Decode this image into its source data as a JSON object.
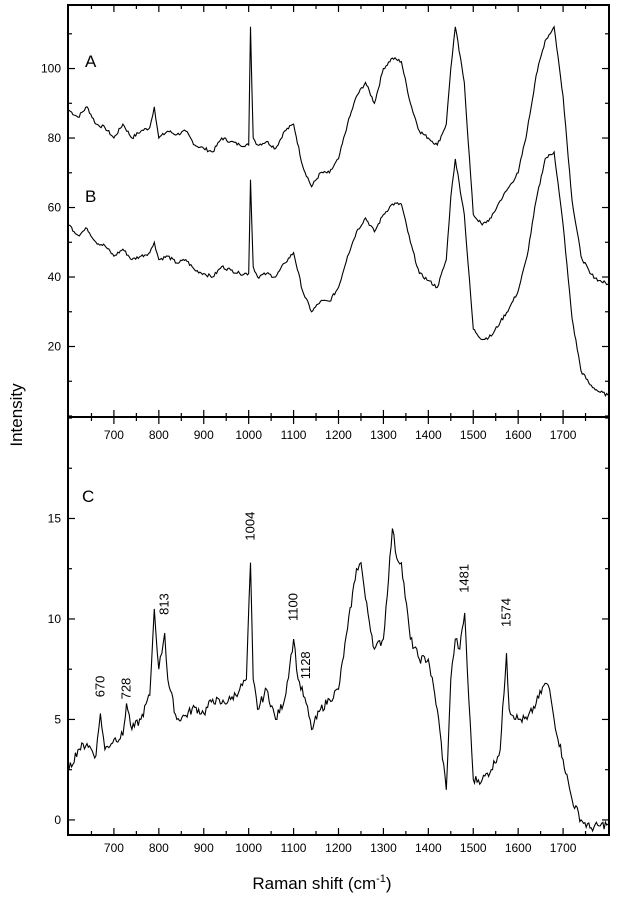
{
  "chart_data": [
    {
      "type": "line",
      "panel": "top",
      "ylabel": "Intensity",
      "xlim": [
        600,
        1800
      ],
      "ylim": [
        0,
        118
      ],
      "xticks": [
        700,
        800,
        900,
        1000,
        1100,
        1200,
        1300,
        1400,
        1500,
        1600,
        1700
      ],
      "yticks": [
        20,
        40,
        60,
        80,
        100
      ],
      "series": [
        {
          "name": "A",
          "x": [
            600,
            620,
            640,
            660,
            680,
            700,
            720,
            740,
            760,
            780,
            790,
            800,
            820,
            840,
            860,
            880,
            900,
            920,
            940,
            960,
            980,
            1000,
            1004,
            1010,
            1020,
            1040,
            1060,
            1080,
            1100,
            1120,
            1140,
            1160,
            1180,
            1200,
            1220,
            1240,
            1260,
            1280,
            1300,
            1320,
            1340,
            1360,
            1380,
            1400,
            1420,
            1440,
            1450,
            1460,
            1480,
            1500,
            1520,
            1540,
            1560,
            1580,
            1600,
            1620,
            1640,
            1660,
            1680,
            1700,
            1720,
            1740,
            1760,
            1780,
            1800
          ],
          "y": [
            88,
            86,
            89,
            84,
            83,
            80,
            84,
            80,
            82,
            83,
            89,
            80,
            82,
            81,
            82,
            78,
            77,
            76,
            80,
            79,
            78,
            78,
            112,
            80,
            78,
            79,
            77,
            82,
            84,
            72,
            66,
            70,
            70,
            74,
            84,
            92,
            96,
            90,
            100,
            103,
            102,
            90,
            82,
            80,
            78,
            84,
            100,
            112,
            96,
            58,
            55,
            57,
            62,
            66,
            70,
            82,
            98,
            108,
            112,
            92,
            62,
            46,
            41,
            39,
            38
          ]
        },
        {
          "name": "B",
          "x": [
            600,
            620,
            640,
            660,
            680,
            700,
            720,
            740,
            760,
            780,
            790,
            800,
            820,
            840,
            860,
            880,
            900,
            920,
            940,
            960,
            980,
            1000,
            1004,
            1010,
            1020,
            1040,
            1060,
            1080,
            1100,
            1120,
            1140,
            1160,
            1180,
            1200,
            1220,
            1240,
            1260,
            1280,
            1300,
            1320,
            1340,
            1360,
            1380,
            1400,
            1420,
            1440,
            1450,
            1460,
            1480,
            1500,
            1520,
            1540,
            1560,
            1580,
            1600,
            1620,
            1640,
            1660,
            1680,
            1700,
            1720,
            1740,
            1760,
            1780,
            1800
          ],
          "y": [
            55,
            52,
            54,
            50,
            49,
            46,
            48,
            45,
            46,
            47,
            50,
            45,
            46,
            44,
            45,
            42,
            41,
            40,
            43,
            42,
            41,
            41,
            68,
            43,
            40,
            41,
            40,
            44,
            47,
            36,
            30,
            33,
            33,
            37,
            46,
            53,
            57,
            53,
            58,
            61,
            61,
            50,
            41,
            39,
            37,
            45,
            63,
            74,
            58,
            25,
            22,
            23,
            27,
            31,
            36,
            46,
            62,
            74,
            76,
            55,
            28,
            13,
            9,
            7,
            6
          ]
        }
      ],
      "annotations": [
        "A",
        "B"
      ]
    },
    {
      "type": "line",
      "panel": "bottom",
      "xlabel": "Raman shift (cm",
      "xlabel_sup": "-1",
      "xlabel_suffix": ")",
      "xlim": [
        600,
        1800
      ],
      "ylim": [
        -0.7,
        20
      ],
      "xticks": [
        700,
        800,
        900,
        1000,
        1100,
        1200,
        1300,
        1400,
        1500,
        1600,
        1700
      ],
      "yticks": [
        0,
        5,
        10,
        15
      ],
      "series": [
        {
          "name": "C",
          "x": [
            600,
            620,
            640,
            660,
            670,
            680,
            700,
            720,
            728,
            740,
            760,
            780,
            790,
            800,
            813,
            820,
            840,
            860,
            880,
            900,
            920,
            940,
            960,
            980,
            995,
            1004,
            1010,
            1020,
            1040,
            1060,
            1080,
            1100,
            1110,
            1128,
            1140,
            1160,
            1180,
            1200,
            1220,
            1240,
            1250,
            1260,
            1280,
            1300,
            1320,
            1330,
            1340,
            1360,
            1380,
            1400,
            1420,
            1440,
            1450,
            1460,
            1470,
            1481,
            1490,
            1500,
            1520,
            1540,
            1560,
            1574,
            1580,
            1600,
            1620,
            1640,
            1660,
            1670,
            1680,
            1700,
            1720,
            1740,
            1760,
            1780,
            1800
          ],
          "y": [
            2.5,
            3.5,
            3.8,
            3.2,
            5.3,
            3.5,
            4.0,
            4.2,
            5.8,
            4.5,
            5.0,
            6.2,
            10.5,
            7.5,
            9.3,
            7.0,
            5.0,
            5.2,
            5.6,
            5.3,
            6.0,
            5.8,
            6.0,
            6.5,
            7.0,
            12.8,
            7.0,
            5.5,
            6.5,
            5.0,
            6.0,
            9.0,
            7.0,
            5.8,
            4.5,
            5.5,
            6.0,
            6.5,
            9.5,
            12.5,
            12.8,
            11.0,
            8.5,
            9.0,
            14.5,
            13.0,
            12.8,
            9.0,
            8.0,
            8.0,
            5.5,
            1.5,
            7.0,
            9.0,
            8.5,
            10.3,
            6.0,
            2.0,
            2.0,
            2.5,
            3.5,
            8.3,
            5.5,
            5.0,
            5.0,
            5.8,
            6.8,
            6.5,
            5.0,
            3.0,
            1.0,
            0.0,
            -0.4,
            -0.3,
            -0.2
          ]
        }
      ],
      "annotations": [
        "C"
      ],
      "peak_labels": [
        {
          "text": "670",
          "x": 670,
          "y": 6.1
        },
        {
          "text": "728",
          "x": 728,
          "y": 6.0
        },
        {
          "text": "813",
          "x": 813,
          "y": 10.2
        },
        {
          "text": "1004",
          "x": 1004,
          "y": 13.9
        },
        {
          "text": "1100",
          "x": 1100,
          "y": 9.9
        },
        {
          "text": "1128",
          "x": 1128,
          "y": 7.0
        },
        {
          "text": "1481",
          "x": 1481,
          "y": 11.3
        },
        {
          "text": "1574",
          "x": 1574,
          "y": 9.6
        }
      ]
    }
  ]
}
